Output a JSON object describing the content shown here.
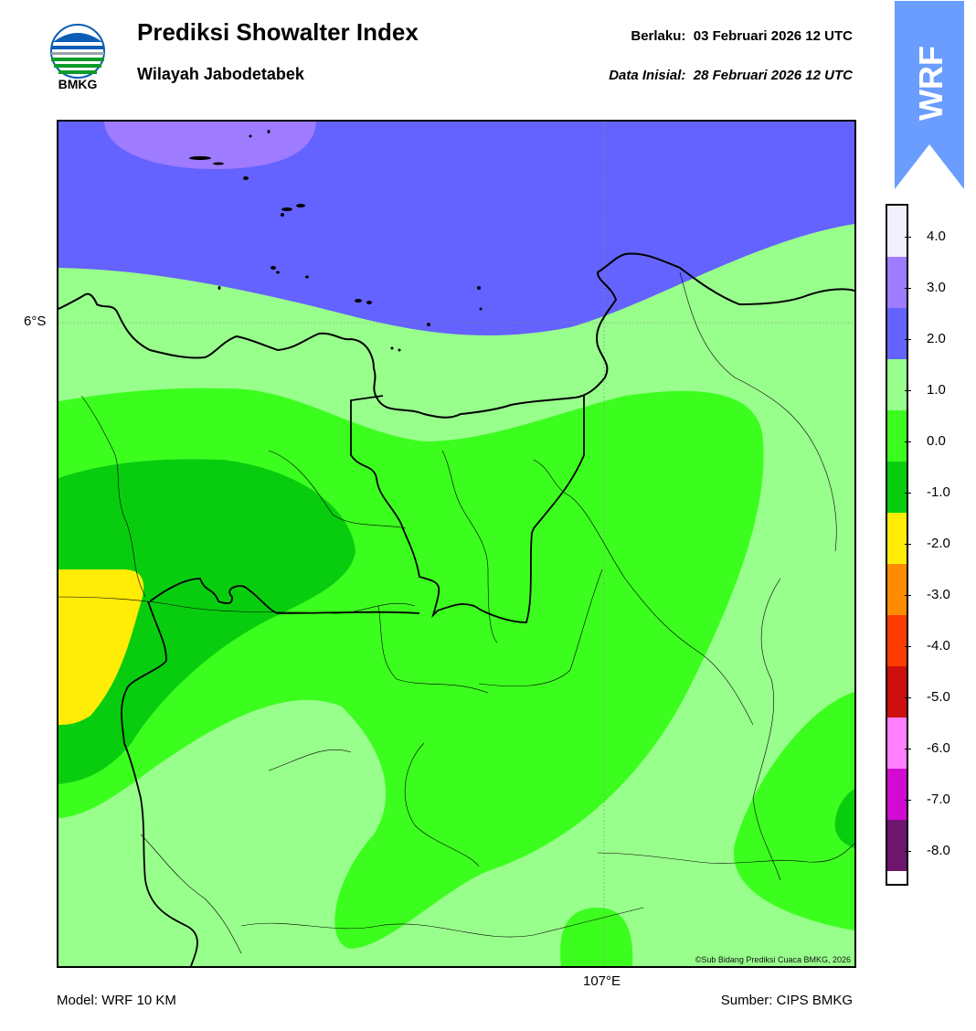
{
  "header": {
    "logo_text": "BMKG",
    "title": "Prediksi Showalter Index",
    "subtitle": "Wilayah Jabodetabek",
    "valid_label": "Berlaku:",
    "valid_value": "03 Februari 2026 12 UTC",
    "init_label": "Data Inisial:",
    "init_value": "28 Februari 2026 12 UTC"
  },
  "badge": {
    "text": "WRF",
    "color": "#6b9dff"
  },
  "map": {
    "lat_label": "6°S",
    "lon_label": "107°E",
    "copyright": "©Sub Bidang Prediksi Cuaca BMKG, 2026",
    "icons": [
      "coastline-icon",
      "boundary-icon"
    ]
  },
  "colorbar": {
    "colors": [
      "#f0f0ff",
      "#9e7bff",
      "#6463ff",
      "#99ff8c",
      "#3cfe1e",
      "#08cd0f",
      "#ffec07",
      "#ff8c00",
      "#ff3c00",
      "#cd0f0f",
      "#ff7ffe",
      "#d20ad2",
      "#6e156e"
    ],
    "labels": [
      "4.0",
      "3.0",
      "2.0",
      "1.0",
      "0.0",
      "-1.0",
      "-2.0",
      "-3.0",
      "-4.0",
      "-5.0",
      "-6.0",
      "-7.0",
      "-8.0"
    ]
  },
  "footer": {
    "model": "Model: WRF 10 KM",
    "source": "Sumber: CIPS BMKG"
  }
}
